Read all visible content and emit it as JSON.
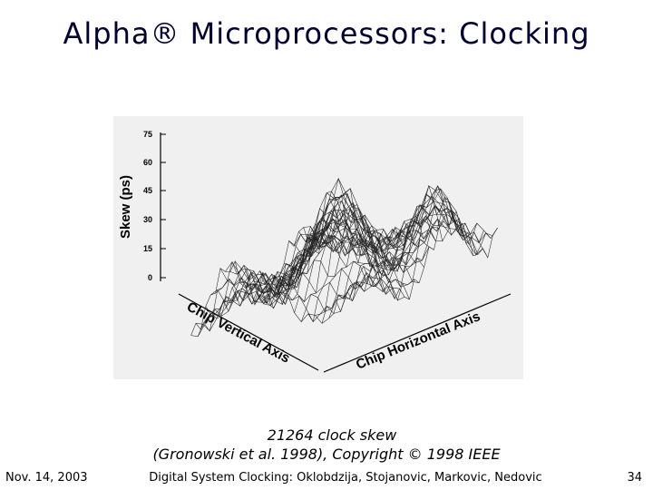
{
  "slide": {
    "title": "Alpha® Microprocessors: Clocking",
    "caption_line_1": "21264 clock skew",
    "caption_line_2": "(Gronowski et al. 1998), Copyright © 1998 IEEE",
    "footer_date": "Nov. 14, 2003",
    "footer_center": "Digital System Clocking: Oklobdzija, Stojanovic, Markovic, Nedovic",
    "page_number": "34"
  },
  "figure": {
    "z_axis_label": "Skew (ps)",
    "z_ticks": [
      "75",
      "60",
      "45",
      "30",
      "15",
      "0"
    ],
    "x_axis_label": "Chip Vertical Axis",
    "y_axis_label": "Chip Horizontal Axis"
  }
}
